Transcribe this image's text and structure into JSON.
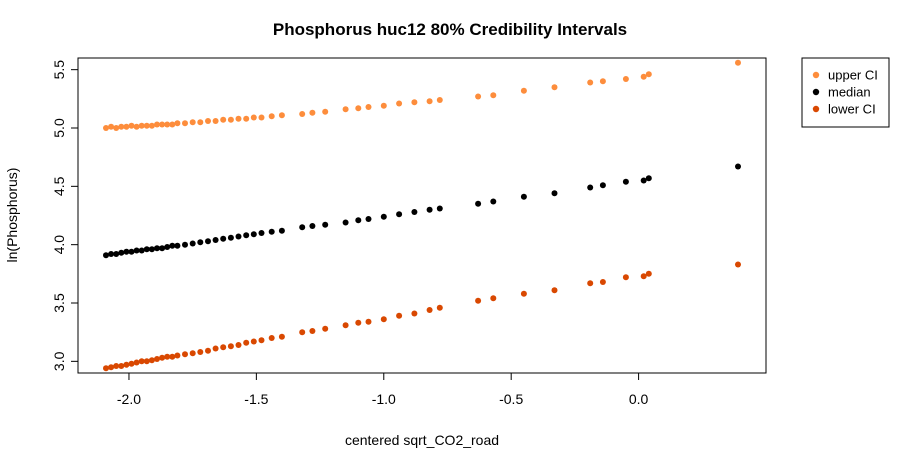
{
  "chart_data": {
    "type": "scatter",
    "title": "Phosphorus huc12 80% Credibility Intervals",
    "xlabel": "centered sqrt_CO2_road",
    "ylabel": "ln(Phosphorus)",
    "xlim": [
      -2.2,
      0.5
    ],
    "ylim": [
      2.9,
      5.6
    ],
    "x_ticks": [
      -2.0,
      -1.5,
      -1.0,
      -0.5,
      0.0
    ],
    "x_tick_labels": [
      "-2.0",
      "-1.5",
      "-1.0",
      "-0.5",
      "0.0"
    ],
    "y_ticks": [
      3.0,
      3.5,
      4.0,
      4.5,
      5.0,
      5.5
    ],
    "y_tick_labels": [
      "3.0",
      "3.5",
      "4.0",
      "4.5",
      "5.0",
      "5.5"
    ],
    "grid": false,
    "legend_position": "outside-top-right",
    "series": [
      {
        "name": "upper CI",
        "color": "#fd8d3c",
        "points": [
          [
            -2.09,
            5.0
          ],
          [
            -2.07,
            5.01
          ],
          [
            -2.05,
            5.0
          ],
          [
            -2.03,
            5.01
          ],
          [
            -2.01,
            5.01
          ],
          [
            -1.99,
            5.02
          ],
          [
            -1.97,
            5.01
          ],
          [
            -1.95,
            5.02
          ],
          [
            -1.93,
            5.02
          ],
          [
            -1.91,
            5.02
          ],
          [
            -1.89,
            5.03
          ],
          [
            -1.87,
            5.03
          ],
          [
            -1.85,
            5.03
          ],
          [
            -1.83,
            5.03
          ],
          [
            -1.81,
            5.04
          ],
          [
            -1.78,
            5.04
          ],
          [
            -1.75,
            5.05
          ],
          [
            -1.72,
            5.05
          ],
          [
            -1.69,
            5.06
          ],
          [
            -1.66,
            5.06
          ],
          [
            -1.63,
            5.07
          ],
          [
            -1.6,
            5.07
          ],
          [
            -1.57,
            5.08
          ],
          [
            -1.54,
            5.08
          ],
          [
            -1.51,
            5.09
          ],
          [
            -1.48,
            5.09
          ],
          [
            -1.44,
            5.1
          ],
          [
            -1.4,
            5.11
          ],
          [
            -1.32,
            5.12
          ],
          [
            -1.28,
            5.13
          ],
          [
            -1.23,
            5.14
          ],
          [
            -1.15,
            5.16
          ],
          [
            -1.1,
            5.17
          ],
          [
            -1.06,
            5.18
          ],
          [
            -1.0,
            5.19
          ],
          [
            -0.94,
            5.21
          ],
          [
            -0.88,
            5.22
          ],
          [
            -0.82,
            5.23
          ],
          [
            -0.78,
            5.24
          ],
          [
            -0.63,
            5.27
          ],
          [
            -0.57,
            5.28
          ],
          [
            -0.45,
            5.32
          ],
          [
            -0.33,
            5.35
          ],
          [
            -0.19,
            5.39
          ],
          [
            -0.14,
            5.4
          ],
          [
            -0.05,
            5.42
          ],
          [
            0.02,
            5.44
          ],
          [
            0.04,
            5.46
          ],
          [
            0.39,
            5.56
          ]
        ]
      },
      {
        "name": "median",
        "color": "#000000",
        "points": [
          [
            -2.09,
            3.91
          ],
          [
            -2.07,
            3.92
          ],
          [
            -2.05,
            3.92
          ],
          [
            -2.03,
            3.93
          ],
          [
            -2.01,
            3.94
          ],
          [
            -1.99,
            3.94
          ],
          [
            -1.97,
            3.95
          ],
          [
            -1.95,
            3.95
          ],
          [
            -1.93,
            3.96
          ],
          [
            -1.91,
            3.96
          ],
          [
            -1.89,
            3.97
          ],
          [
            -1.87,
            3.97
          ],
          [
            -1.85,
            3.98
          ],
          [
            -1.83,
            3.99
          ],
          [
            -1.81,
            3.99
          ],
          [
            -1.78,
            4.0
          ],
          [
            -1.75,
            4.01
          ],
          [
            -1.72,
            4.02
          ],
          [
            -1.69,
            4.03
          ],
          [
            -1.66,
            4.04
          ],
          [
            -1.63,
            4.05
          ],
          [
            -1.6,
            4.06
          ],
          [
            -1.57,
            4.07
          ],
          [
            -1.54,
            4.08
          ],
          [
            -1.51,
            4.09
          ],
          [
            -1.48,
            4.1
          ],
          [
            -1.44,
            4.11
          ],
          [
            -1.4,
            4.12
          ],
          [
            -1.32,
            4.15
          ],
          [
            -1.28,
            4.16
          ],
          [
            -1.23,
            4.17
          ],
          [
            -1.15,
            4.19
          ],
          [
            -1.1,
            4.21
          ],
          [
            -1.06,
            4.22
          ],
          [
            -1.0,
            4.24
          ],
          [
            -0.94,
            4.26
          ],
          [
            -0.88,
            4.28
          ],
          [
            -0.82,
            4.3
          ],
          [
            -0.78,
            4.31
          ],
          [
            -0.63,
            4.35
          ],
          [
            -0.57,
            4.37
          ],
          [
            -0.45,
            4.41
          ],
          [
            -0.33,
            4.44
          ],
          [
            -0.19,
            4.49
          ],
          [
            -0.14,
            4.51
          ],
          [
            -0.05,
            4.54
          ],
          [
            0.02,
            4.55
          ],
          [
            0.04,
            4.57
          ],
          [
            0.39,
            4.67
          ]
        ]
      },
      {
        "name": "lower CI",
        "color": "#d94801",
        "points": [
          [
            -2.09,
            2.94
          ],
          [
            -2.07,
            2.95
          ],
          [
            -2.05,
            2.96
          ],
          [
            -2.03,
            2.96
          ],
          [
            -2.01,
            2.97
          ],
          [
            -1.99,
            2.98
          ],
          [
            -1.97,
            2.99
          ],
          [
            -1.95,
            3.0
          ],
          [
            -1.93,
            3.0
          ],
          [
            -1.91,
            3.01
          ],
          [
            -1.89,
            3.02
          ],
          [
            -1.87,
            3.03
          ],
          [
            -1.85,
            3.04
          ],
          [
            -1.83,
            3.04
          ],
          [
            -1.81,
            3.05
          ],
          [
            -1.78,
            3.06
          ],
          [
            -1.75,
            3.07
          ],
          [
            -1.72,
            3.08
          ],
          [
            -1.69,
            3.09
          ],
          [
            -1.66,
            3.11
          ],
          [
            -1.63,
            3.12
          ],
          [
            -1.6,
            3.13
          ],
          [
            -1.57,
            3.14
          ],
          [
            -1.54,
            3.16
          ],
          [
            -1.51,
            3.17
          ],
          [
            -1.48,
            3.18
          ],
          [
            -1.44,
            3.2
          ],
          [
            -1.4,
            3.21
          ],
          [
            -1.32,
            3.25
          ],
          [
            -1.28,
            3.26
          ],
          [
            -1.23,
            3.28
          ],
          [
            -1.15,
            3.31
          ],
          [
            -1.1,
            3.33
          ],
          [
            -1.06,
            3.34
          ],
          [
            -1.0,
            3.36
          ],
          [
            -0.94,
            3.39
          ],
          [
            -0.88,
            3.41
          ],
          [
            -0.82,
            3.44
          ],
          [
            -0.78,
            3.46
          ],
          [
            -0.63,
            3.52
          ],
          [
            -0.57,
            3.54
          ],
          [
            -0.45,
            3.58
          ],
          [
            -0.33,
            3.61
          ],
          [
            -0.19,
            3.67
          ],
          [
            -0.14,
            3.68
          ],
          [
            -0.05,
            3.72
          ],
          [
            0.02,
            3.73
          ],
          [
            0.04,
            3.75
          ],
          [
            0.39,
            3.83
          ]
        ]
      }
    ]
  }
}
